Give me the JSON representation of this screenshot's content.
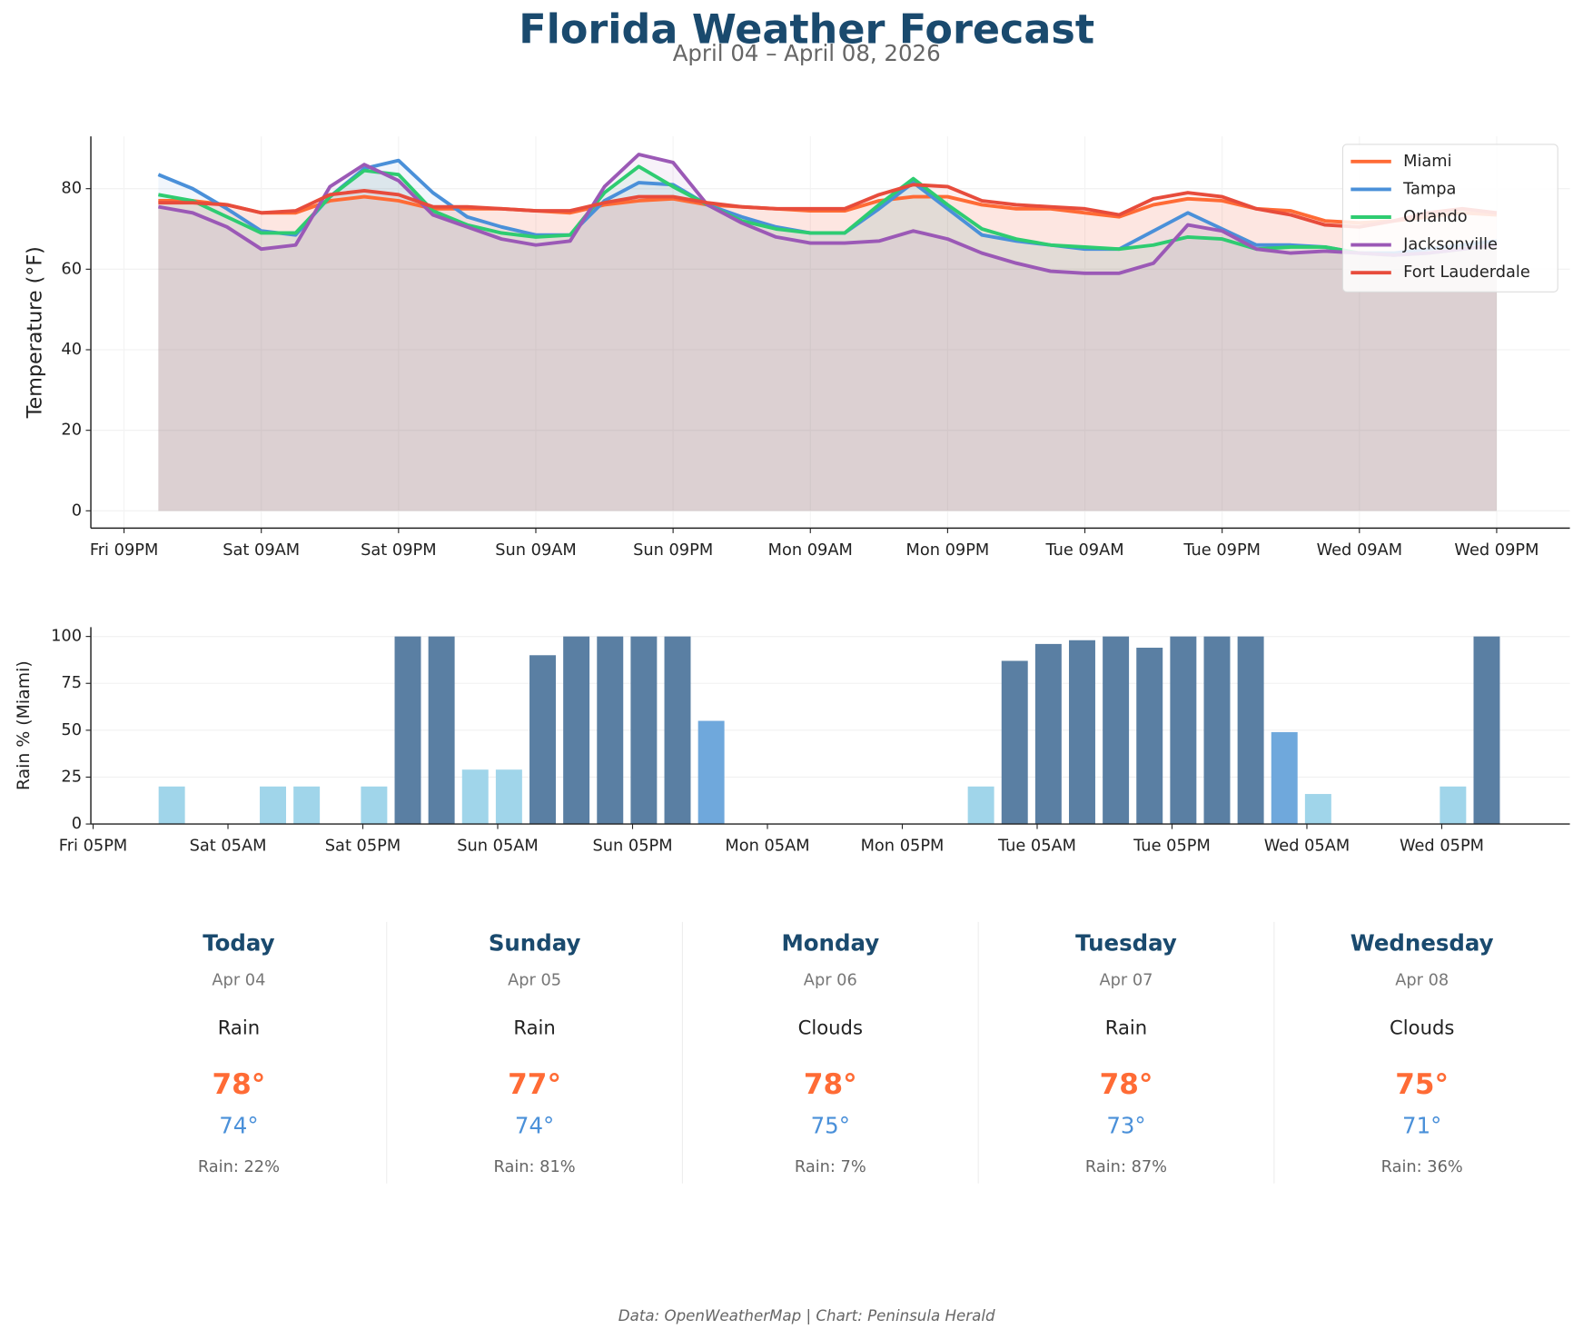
{
  "title": "Florida Weather Forecast",
  "subtitle": "April 04 – April 08, 2026",
  "chart_data": [
    {
      "type": "line",
      "ylabel": "Temperature (°F)",
      "x": [
        3,
        6,
        9,
        12,
        15,
        18,
        21,
        24,
        27,
        30,
        33,
        36,
        39,
        42,
        45,
        48,
        51,
        54,
        57,
        60,
        63,
        66,
        69,
        72,
        75,
        78,
        81,
        84,
        87,
        90,
        93,
        96,
        99,
        102,
        105,
        108,
        111,
        114,
        117,
        120
      ],
      "xlim": [
        -2.9,
        126.4
      ],
      "xticks": [
        {
          "value": 0,
          "label": "Fri 09PM"
        },
        {
          "value": 12,
          "label": "Sat 09AM"
        },
        {
          "value": 24,
          "label": "Sat 09PM"
        },
        {
          "value": 36,
          "label": "Sun 09AM"
        },
        {
          "value": 48,
          "label": "Sun 09PM"
        },
        {
          "value": 60,
          "label": "Mon 09AM"
        },
        {
          "value": 72,
          "label": "Mon 09PM"
        },
        {
          "value": 84,
          "label": "Tue 09AM"
        },
        {
          "value": 96,
          "label": "Tue 09PM"
        },
        {
          "value": 108,
          "label": "Wed 09AM"
        },
        {
          "value": 120,
          "label": "Wed 09PM"
        }
      ],
      "ylim": [
        -4.3,
        93
      ],
      "yticks": [
        0,
        20,
        40,
        60,
        80
      ],
      "grid": true,
      "legend": "upper right",
      "series": [
        {
          "name": "Miami",
          "color": "#ff6b35",
          "values": [
            77,
            77,
            76,
            74,
            74,
            77,
            78,
            77,
            75,
            75,
            75,
            74.5,
            74,
            76,
            77,
            77.5,
            76,
            75.5,
            75,
            74.5,
            74.5,
            77,
            78,
            78,
            76,
            75,
            75,
            74,
            73,
            76,
            77.5,
            77,
            75,
            74.5,
            72,
            71.5,
            72,
            73,
            74,
            73.5
          ]
        },
        {
          "name": "Tampa",
          "color": "#4a90d9",
          "values": [
            83.5,
            80,
            75,
            69.5,
            68.5,
            78,
            85,
            87,
            79,
            73,
            70.5,
            68.5,
            68.5,
            77,
            81.5,
            81,
            76,
            73,
            70.5,
            69,
            69,
            75,
            81.5,
            75,
            68.5,
            67,
            66,
            65,
            65,
            69.5,
            74,
            70,
            66,
            66,
            65.5,
            64,
            64,
            65,
            66,
            67
          ]
        },
        {
          "name": "Orlando",
          "color": "#2ecc71",
          "values": [
            78.5,
            77,
            73,
            69,
            69,
            78,
            84.5,
            83.5,
            74.5,
            71,
            69,
            68,
            68.5,
            79,
            85.5,
            80.5,
            76,
            72,
            70,
            69,
            69,
            76,
            82.5,
            76,
            70,
            67.5,
            66,
            65.5,
            65,
            66,
            68,
            67.5,
            65,
            65.5,
            65.5,
            64,
            63.5,
            64,
            65,
            66
          ]
        },
        {
          "name": "Jacksonville",
          "color": "#9b59b6",
          "values": [
            75.5,
            74,
            70.5,
            65,
            66,
            80.5,
            86,
            82,
            73.5,
            70.5,
            67.5,
            66,
            67,
            80.5,
            88.5,
            86.5,
            76,
            71.5,
            68,
            66.5,
            66.5,
            67,
            69.5,
            67.5,
            64,
            61.5,
            59.5,
            59,
            59,
            61.5,
            71,
            69.5,
            65,
            64,
            64.5,
            64,
            63.5,
            64,
            65,
            66
          ]
        },
        {
          "name": "Fort Lauderdale",
          "color": "#e74c3c",
          "values": [
            76.5,
            76.5,
            76,
            74,
            74.5,
            78.5,
            79.5,
            78.5,
            75.5,
            75.5,
            75,
            74.5,
            74.5,
            76.5,
            78,
            78,
            76.5,
            75.5,
            75,
            75,
            75,
            78.5,
            81,
            80.5,
            77,
            76,
            75.5,
            75,
            73.5,
            77.5,
            79,
            78,
            75,
            73.5,
            71,
            70.5,
            72,
            74,
            75,
            74
          ]
        }
      ]
    },
    {
      "type": "bar",
      "ylabel": "Rain % (Miami)",
      "x": [
        3,
        6,
        9,
        12,
        15,
        18,
        21,
        24,
        27,
        30,
        33,
        36,
        39,
        42,
        45,
        48,
        51,
        54,
        57,
        60,
        63,
        66,
        69,
        72,
        75,
        78,
        81,
        84,
        87,
        90,
        93,
        96,
        99,
        102,
        105,
        108,
        111,
        114,
        117,
        120
      ],
      "values": [
        20,
        0,
        0,
        20,
        20,
        0,
        20,
        100,
        100,
        29,
        29,
        90,
        100,
        100,
        100,
        100,
        55,
        0,
        0,
        0,
        0,
        0,
        0,
        0,
        20,
        87,
        96,
        98,
        100,
        94,
        100,
        100,
        100,
        49,
        16,
        0,
        0,
        0,
        20,
        100
      ],
      "colors": [
        "#a0d5ea",
        "#a0d5ea",
        "#a0d5ea",
        "#a0d5ea",
        "#a0d5ea",
        "#a0d5ea",
        "#a0d5ea",
        "#5a7fa3",
        "#5a7fa3",
        "#a0d5ea",
        "#a0d5ea",
        "#5a7fa3",
        "#5a7fa3",
        "#5a7fa3",
        "#5a7fa3",
        "#5a7fa3",
        "#6fa8dc",
        "#a0d5ea",
        "#a0d5ea",
        "#a0d5ea",
        "#a0d5ea",
        "#a0d5ea",
        "#a0d5ea",
        "#a0d5ea",
        "#a0d5ea",
        "#5a7fa3",
        "#5a7fa3",
        "#5a7fa3",
        "#5a7fa3",
        "#5a7fa3",
        "#5a7fa3",
        "#5a7fa3",
        "#5a7fa3",
        "#6fa8dc",
        "#a0d5ea",
        "#a0d5ea",
        "#a0d5ea",
        "#a0d5ea",
        "#a0d5ea",
        "#5a7fa3"
      ],
      "xlim": [
        -4.2,
        127.4
      ],
      "xticks": [
        {
          "value": -4,
          "label": "Fri 05PM"
        },
        {
          "value": 8,
          "label": "Sat 05AM"
        },
        {
          "value": 20,
          "label": "Sat 05PM"
        },
        {
          "value": 32,
          "label": "Sun 05AM"
        },
        {
          "value": 44,
          "label": "Sun 05PM"
        },
        {
          "value": 56,
          "label": "Mon 05AM"
        },
        {
          "value": 68,
          "label": "Mon 05PM"
        },
        {
          "value": 80,
          "label": "Tue 05AM"
        },
        {
          "value": 92,
          "label": "Tue 05PM"
        },
        {
          "value": 104,
          "label": "Wed 05AM"
        },
        {
          "value": 116,
          "label": "Wed 05PM"
        }
      ],
      "ylim": [
        0,
        105
      ],
      "yticks": [
        0,
        25,
        50,
        75,
        100
      ],
      "grid": true
    }
  ],
  "forecast": [
    {
      "day": "Today",
      "date": "Apr 04",
      "condition": "Rain",
      "high": "78°",
      "low": "74°",
      "rain": "Rain: 22%"
    },
    {
      "day": "Sunday",
      "date": "Apr 05",
      "condition": "Rain",
      "high": "77°",
      "low": "74°",
      "rain": "Rain: 81%"
    },
    {
      "day": "Monday",
      "date": "Apr 06",
      "condition": "Clouds",
      "high": "78°",
      "low": "75°",
      "rain": "Rain: 7%"
    },
    {
      "day": "Tuesday",
      "date": "Apr 07",
      "condition": "Rain",
      "high": "78°",
      "low": "73°",
      "rain": "Rain: 87%"
    },
    {
      "day": "Wednesday",
      "date": "Apr 08",
      "condition": "Clouds",
      "high": "75°",
      "low": "71°",
      "rain": "Rain: 36%"
    }
  ],
  "footer": "Data: OpenWeatherMap | Chart: Peninsula Herald"
}
